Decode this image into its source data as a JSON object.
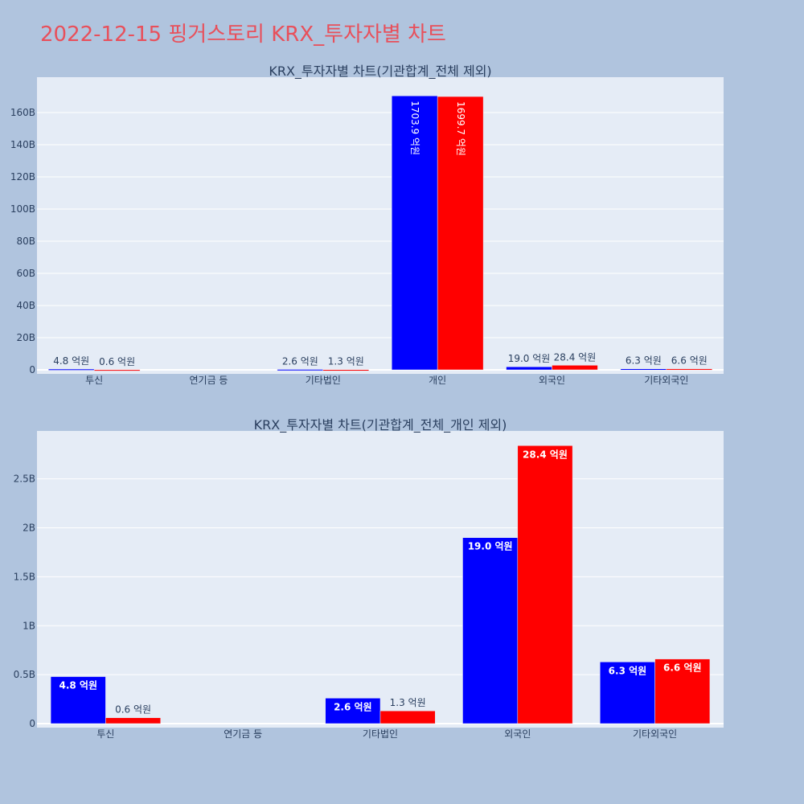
{
  "page": {
    "title": "2022-12-15 핑거스토리 KRX_투자자별 차트"
  },
  "colors": {
    "background": "#b0c4de",
    "plot_background": "#e5ecf6",
    "series_1": "#0000ff",
    "series_2": "#ff0000",
    "title": "#e8505b",
    "text": "#2a3f5f"
  },
  "chart_data": [
    {
      "type": "bar",
      "title": "KRX_투자자별 차트(기관합계_전체 제외)",
      "categories": [
        "투신",
        "연기금 등",
        "기타법인",
        "개인",
        "외국인",
        "기타외국인"
      ],
      "series": [
        {
          "values": [
            480000000,
            0,
            260000000,
            170390000000,
            1900000000,
            630000000
          ],
          "labels": [
            "4.8 억원",
            "",
            "2.6 억원",
            "1703.9 억원",
            "19.0 억원",
            "6.3 억원"
          ]
        },
        {
          "values": [
            60000000,
            0,
            130000000,
            169970000000,
            2840000000,
            660000000
          ],
          "labels": [
            "0.6 억원",
            "",
            "1.3 억원",
            "1699.7 억원",
            "28.4 억원",
            "6.6 억원"
          ]
        }
      ],
      "ylim": [
        0,
        182000000000
      ],
      "yticks": [
        0,
        20000000000,
        40000000000,
        60000000000,
        80000000000,
        100000000000,
        120000000000,
        140000000000,
        160000000000
      ],
      "ytick_labels": [
        "0",
        "20B",
        "40B",
        "60B",
        "80B",
        "100B",
        "120B",
        "140B",
        "160B"
      ],
      "grid": true,
      "xlabel": "",
      "ylabel": ""
    },
    {
      "type": "bar",
      "title": "KRX_투자자별 차트(기관합계_전체_개인 제외)",
      "categories": [
        "투신",
        "연기금 등",
        "기타법인",
        "외국인",
        "기타외국인"
      ],
      "series": [
        {
          "values": [
            480000000,
            0,
            260000000,
            1900000000,
            630000000
          ],
          "labels": [
            "4.8 억원",
            "",
            "2.6 억원",
            "19.0 억원",
            "6.3 억원"
          ]
        },
        {
          "values": [
            60000000,
            0,
            130000000,
            2840000000,
            660000000
          ],
          "labels": [
            "0.6 억원",
            "",
            "1.3 억원",
            "28.4 억원",
            "6.6 억원"
          ]
        }
      ],
      "ylim": [
        0,
        2990000000
      ],
      "yticks": [
        0,
        500000000,
        1000000000,
        1500000000,
        2000000000,
        2500000000
      ],
      "ytick_labels": [
        "0",
        "0.5B",
        "1B",
        "1.5B",
        "2B",
        "2.5B"
      ],
      "grid": true,
      "xlabel": "",
      "ylabel": ""
    }
  ]
}
